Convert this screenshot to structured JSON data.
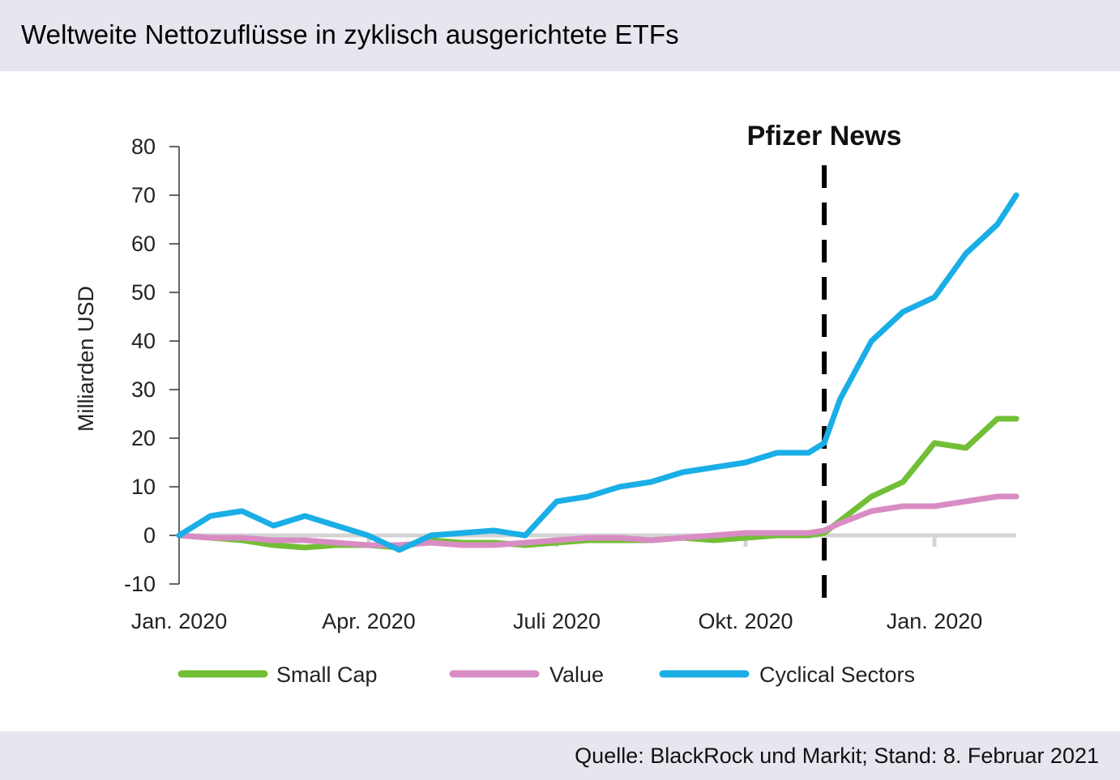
{
  "title": "Weltweite Nettozuflüsse in zyklisch ausgerichtete ETFs",
  "source": "Quelle: BlackRock und Markit; Stand: 8. Februar 2021",
  "chart_data": {
    "type": "line",
    "ylabel": "Milliarden USD",
    "ylim": [
      -10,
      80
    ],
    "yticks": [
      80,
      70,
      60,
      50,
      40,
      30,
      20,
      10,
      0,
      -10
    ],
    "ytick_labels": [
      "80",
      "70",
      "60",
      "50",
      "40",
      "30",
      "20",
      "10",
      "0",
      "-10"
    ],
    "xlabels": [
      "Jan. 2020",
      "Apr. 2020",
      "Juli 2020",
      "Okt. 2020",
      "Jan. 2020"
    ],
    "grid": false,
    "legend_position": "bottom",
    "annotation": {
      "label": "Pfizer News",
      "x": 10.25
    },
    "x": [
      0,
      0.5,
      1,
      1.5,
      2,
      2.5,
      3,
      3.5,
      4,
      4.5,
      5,
      5.5,
      6,
      6.5,
      7,
      7.5,
      8,
      8.5,
      9,
      9.5,
      10,
      10.25,
      10.5,
      11,
      11.5,
      12,
      12.5,
      13,
      13.3
    ],
    "series": [
      {
        "name": "Small Cap",
        "color": "#72bf36",
        "values": [
          0,
          -0.5,
          -1,
          -2,
          -2.5,
          -2,
          -2,
          -2.5,
          -1,
          -1.5,
          -1.5,
          -2,
          -1.5,
          -1,
          -1,
          -1,
          -0.5,
          -1,
          -0.5,
          0,
          0,
          0.5,
          3,
          8,
          11,
          19,
          18,
          24,
          24
        ]
      },
      {
        "name": "Value",
        "color": "#d98cc3",
        "values": [
          0,
          -0.5,
          -0.5,
          -1,
          -1,
          -1.5,
          -2,
          -2,
          -1.5,
          -2,
          -2,
          -1.5,
          -1,
          -0.5,
          -0.5,
          -1,
          -0.5,
          0,
          0.5,
          0.5,
          0.5,
          1,
          2.5,
          5,
          6,
          6,
          7,
          8,
          8
        ]
      },
      {
        "name": "Cyclical Sectors",
        "color": "#1aaee6",
        "values": [
          0,
          4,
          5,
          2,
          4,
          2,
          0,
          -3,
          0,
          0.5,
          1,
          0,
          7,
          8,
          10,
          11,
          13,
          14,
          15,
          17,
          17,
          19,
          28,
          40,
          46,
          49,
          58,
          64,
          70
        ]
      }
    ]
  }
}
